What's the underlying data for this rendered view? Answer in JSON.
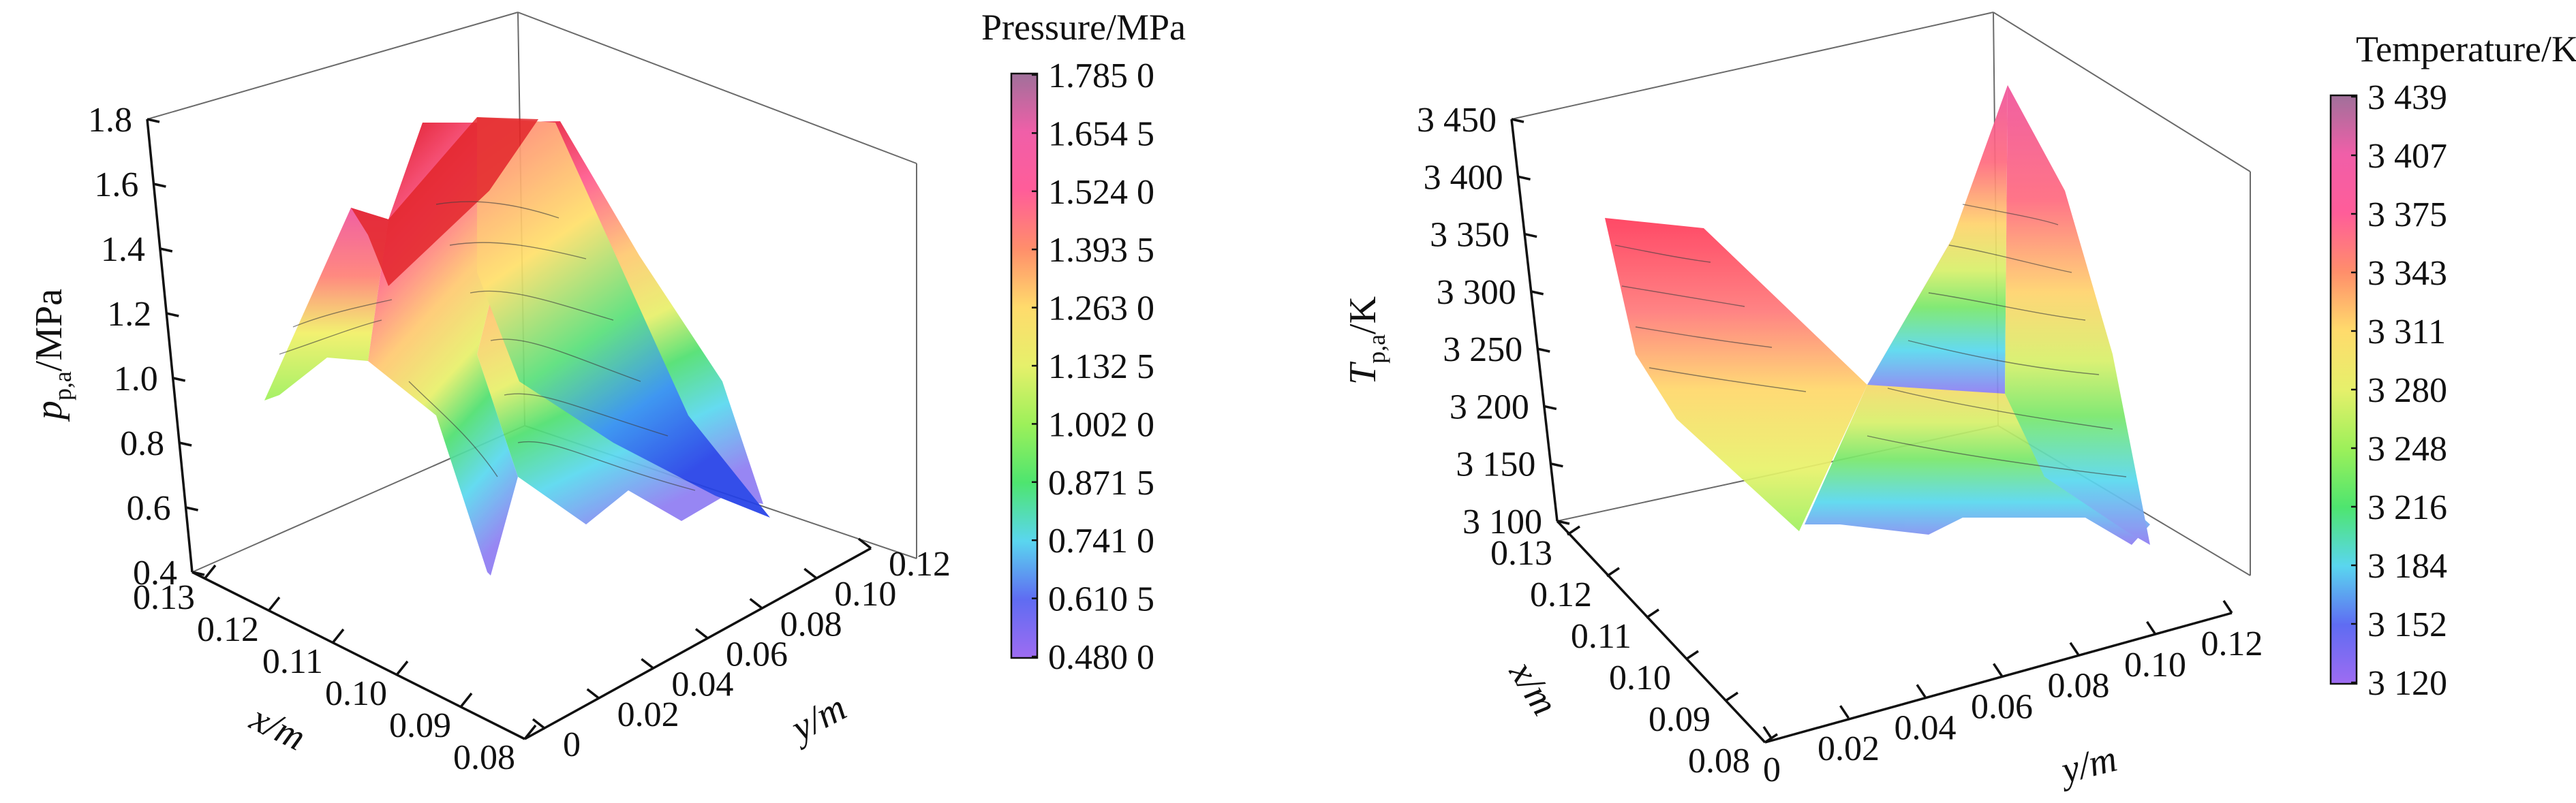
{
  "chart_data": [
    {
      "type": "surface3d",
      "title": "",
      "zlabel_main": "p",
      "zlabel_sub": "p,a",
      "zlabel_unit": "/MPa",
      "xlabel": "x/m",
      "ylabel": "y/m",
      "zlim": [
        0.4,
        1.8
      ],
      "z_ticks": [
        "0.4",
        "0.6",
        "0.8",
        "1.0",
        "1.2",
        "1.4",
        "1.6",
        "1.8"
      ],
      "x_ticks": [
        "0.13",
        "0.12",
        "0.11",
        "0.10",
        "0.09",
        "0.08"
      ],
      "y_ticks": [
        "0",
        "0.02",
        "0.04",
        "0.06",
        "0.08",
        "0.10",
        "0.12"
      ],
      "colorbar": {
        "title": "Pressure/MPa",
        "min": 0.48,
        "max": 1.785,
        "ticks": [
          "1.785 0",
          "1.654 5",
          "1.524 0",
          "1.393 5",
          "1.263 0",
          "1.132 5",
          "1.002 0",
          "0.871 5",
          "0.741 0",
          "0.610 5",
          "0.480 0"
        ]
      },
      "grid": false,
      "legend": "colorbar-right"
    },
    {
      "type": "surface3d",
      "title": "",
      "zlabel_main": "T",
      "zlabel_sub": "p,a",
      "zlabel_unit": "/K",
      "xlabel": "x/m",
      "ylabel": "y/m",
      "zlim": [
        3100,
        3450
      ],
      "z_ticks": [
        "3 100",
        "3 150",
        "3 200",
        "3 250",
        "3 300",
        "3 350",
        "3 400",
        "3 450"
      ],
      "x_ticks": [
        "0.13",
        "0.12",
        "0.11",
        "0.10",
        "0.09",
        "0.08"
      ],
      "y_ticks": [
        "0",
        "0.02",
        "0.04",
        "0.06",
        "0.08",
        "0.10",
        "0.12"
      ],
      "colorbar": {
        "title": "Temperature/K",
        "min": 3120,
        "max": 3439,
        "ticks": [
          "3 439",
          "3 407",
          "3 375",
          "3 343",
          "3 311",
          "3 280",
          "3 248",
          "3 216",
          "3 184",
          "3 152",
          "3 120"
        ]
      },
      "grid": false,
      "legend": "colorbar-right"
    }
  ]
}
